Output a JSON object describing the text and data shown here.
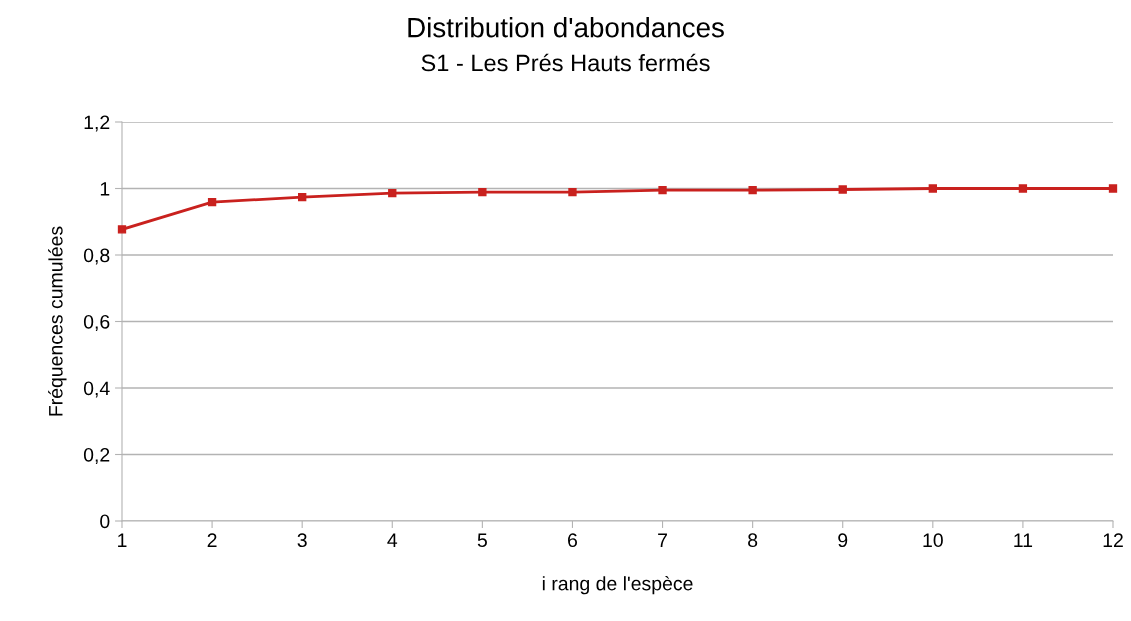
{
  "chart_data": {
    "type": "line",
    "title": "Distribution d'abondances",
    "subtitle": "S1 - Les Prés Hauts fermés",
    "xlabel": "i rang de l'espèce",
    "ylabel": "Fréquences cumulées",
    "x": [
      1,
      2,
      3,
      4,
      5,
      6,
      7,
      8,
      9,
      10,
      11,
      12
    ],
    "series": [
      {
        "color": "#c9211e",
        "values": [
          0.877,
          0.959,
          0.974,
          0.986,
          0.989,
          0.989,
          0.995,
          0.995,
          0.997,
          1.0,
          1.0,
          1.0
        ]
      }
    ],
    "xlim": [
      1,
      12
    ],
    "xticks": [
      1,
      2,
      3,
      4,
      5,
      6,
      7,
      8,
      9,
      10,
      11,
      12
    ],
    "ylim": [
      0,
      1.2
    ],
    "yticks": [
      {
        "value": 0,
        "label": "0"
      },
      {
        "value": 0.2,
        "label": "0,2"
      },
      {
        "value": 0.4,
        "label": "0,4"
      },
      {
        "value": 0.6,
        "label": "0,6"
      },
      {
        "value": 0.8,
        "label": "0,8"
      },
      {
        "value": 1,
        "label": "1"
      },
      {
        "value": 1.2,
        "label": "1,2"
      }
    ],
    "grid": "y",
    "marker": "square",
    "line_style": "solid"
  }
}
